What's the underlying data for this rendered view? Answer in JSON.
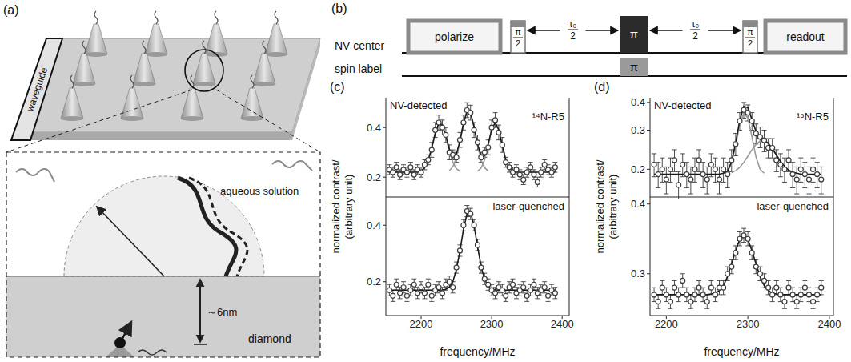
{
  "panels": {
    "a": {
      "letter": "(a)",
      "waveguide": "waveguide",
      "solution": "aqueous solution",
      "depth": "～6nm",
      "diamond": "diamond"
    },
    "b": {
      "letter": "(b)",
      "rows": [
        {
          "label": "NV center",
          "sequence": [
            {
              "kind": "box",
              "text": "polarize"
            },
            {
              "kind": "pulse",
              "num": "π",
              "den": "2"
            },
            {
              "kind": "delay",
              "num": "τ₀",
              "den": "2"
            },
            {
              "kind": "pi",
              "text": "π"
            },
            {
              "kind": "delay",
              "num": "τ₀",
              "den": "2"
            },
            {
              "kind": "pulse",
              "num": "π",
              "den": "2"
            },
            {
              "kind": "box",
              "text": "readout"
            }
          ]
        },
        {
          "label": "spin label",
          "sequence": [
            {
              "kind": "pi_gray",
              "text": "π"
            }
          ]
        }
      ]
    },
    "c": {
      "letter": "(c)",
      "y_label": [
        "normalized contrast/",
        "(arbitrary unit)"
      ]
    },
    "d": {
      "letter": "(d)",
      "y_label": [
        "normalized contrast/",
        "(arbitrary unit)"
      ]
    }
  },
  "chart_data": [
    {
      "type": "scatter",
      "title": "NV-detected",
      "annotation": "¹⁴N-R5",
      "tick_labels": "y",
      "xlim": [
        2150,
        2410
      ],
      "xticks": [
        2200,
        2300,
        2400
      ],
      "ylim": [
        0.12,
        0.52
      ],
      "yticks": [
        0.2,
        0.4
      ],
      "x": [
        2155,
        2160,
        2165,
        2170,
        2175,
        2180,
        2185,
        2190,
        2195,
        2200,
        2205,
        2210,
        2215,
        2220,
        2225,
        2230,
        2235,
        2240,
        2245,
        2250,
        2255,
        2260,
        2265,
        2270,
        2275,
        2280,
        2285,
        2290,
        2295,
        2300,
        2305,
        2310,
        2315,
        2320,
        2325,
        2330,
        2335,
        2340,
        2345,
        2350,
        2355,
        2360,
        2365,
        2370,
        2375,
        2380,
        2385,
        2390
      ],
      "series": [
        {
          "type": "line",
          "color": "#9a9a9a",
          "line_style": "solid",
          "x": [
            2200,
            2205,
            2210,
            2215,
            2220,
            2225,
            2230,
            2235,
            2240,
            2245,
            2250,
            2255
          ],
          "values": [
            0.225,
            0.238,
            0.267,
            0.317,
            0.377,
            0.416,
            0.411,
            0.365,
            0.306,
            0.26,
            0.234,
            0.224
          ]
        },
        {
          "type": "line",
          "color": "#9a9a9a",
          "line_style": "solid",
          "x": [
            2240,
            2245,
            2250,
            2255,
            2260,
            2265,
            2270,
            2275,
            2280,
            2285,
            2290,
            2295
          ],
          "values": [
            0.2265,
            0.242,
            0.279,
            0.342,
            0.416,
            0.465,
            0.459,
            0.402,
            0.328,
            0.27,
            0.238,
            0.225
          ]
        },
        {
          "type": "line",
          "color": "#9a9a9a",
          "line_style": "solid",
          "x": [
            2280,
            2285,
            2290,
            2295,
            2300,
            2305,
            2310,
            2315,
            2320,
            2325,
            2330
          ],
          "values": [
            0.224,
            0.237,
            0.27,
            0.328,
            0.391,
            0.42,
            0.391,
            0.328,
            0.27,
            0.237,
            0.224
          ]
        },
        {
          "type": "line",
          "color": "#1a1a1a",
          "line_style": "solid",
          "values": [
            0.22,
            0.22,
            0.22,
            0.22,
            0.22,
            0.22,
            0.22,
            0.22,
            0.221,
            0.225,
            0.238,
            0.267,
            0.317,
            0.377,
            0.416,
            0.411,
            0.367,
            0.313,
            0.282,
            0.293,
            0.346,
            0.417,
            0.465,
            0.459,
            0.403,
            0.332,
            0.287,
            0.288,
            0.333,
            0.392,
            0.42,
            0.391,
            0.328,
            0.27,
            0.237,
            0.224,
            0.221,
            0.22,
            0.22,
            0.22,
            0.22,
            0.22,
            0.22,
            0.22,
            0.22,
            0.22,
            0.22,
            0.22
          ]
        },
        {
          "type": "scatter",
          "color": "#3a3a3a",
          "marker": "circle",
          "values": [
            0.23,
            0.22,
            0.24,
            0.21,
            0.23,
            0.22,
            0.24,
            0.21,
            0.23,
            0.22,
            0.25,
            0.27,
            0.31,
            0.39,
            0.42,
            0.4,
            0.37,
            0.3,
            0.29,
            0.28,
            0.35,
            0.42,
            0.47,
            0.46,
            0.39,
            0.34,
            0.28,
            0.3,
            0.32,
            0.4,
            0.43,
            0.38,
            0.33,
            0.26,
            0.24,
            0.22,
            0.23,
            0.21,
            0.19,
            0.22,
            0.24,
            0.21,
            0.18,
            0.22,
            0.25,
            0.23,
            0.22,
            0.24
          ],
          "error": [
            0.02,
            0.02,
            0.02,
            0.02,
            0.02,
            0.02,
            0.02,
            0.02,
            0.02,
            0.02,
            0.02,
            0.02,
            0.03,
            0.03,
            0.03,
            0.03,
            0.03,
            0.03,
            0.02,
            0.02,
            0.03,
            0.03,
            0.03,
            0.03,
            0.03,
            0.03,
            0.02,
            0.02,
            0.03,
            0.03,
            0.03,
            0.03,
            0.03,
            0.02,
            0.02,
            0.02,
            0.02,
            0.02,
            0.02,
            0.02,
            0.02,
            0.02,
            0.02,
            0.02,
            0.02,
            0.02,
            0.02,
            0.02
          ]
        }
      ]
    },
    {
      "type": "scatter",
      "title": "laser-quenched",
      "x_label": "frequency/MHz",
      "xlim": [
        2150,
        2410
      ],
      "xticks": [
        2200,
        2300,
        2400
      ],
      "ylim": [
        0.08,
        0.5
      ],
      "yticks": [
        0.2,
        0.4
      ],
      "x": [
        2155,
        2160,
        2165,
        2170,
        2175,
        2180,
        2185,
        2190,
        2195,
        2200,
        2205,
        2210,
        2215,
        2220,
        2225,
        2230,
        2235,
        2240,
        2245,
        2250,
        2255,
        2260,
        2265,
        2270,
        2275,
        2280,
        2285,
        2290,
        2295,
        2300,
        2305,
        2310,
        2315,
        2320,
        2325,
        2330,
        2335,
        2340,
        2345,
        2350,
        2355,
        2360,
        2365,
        2370,
        2375,
        2380,
        2385,
        2390
      ],
      "series": [
        {
          "type": "line",
          "color": "#1a1a1a",
          "line_style": "solid",
          "values": [
            0.17,
            0.17,
            0.17,
            0.17,
            0.17,
            0.17,
            0.17,
            0.17,
            0.17,
            0.17,
            0.17,
            0.17,
            0.17,
            0.17,
            0.17,
            0.171,
            0.173,
            0.181,
            0.201,
            0.243,
            0.309,
            0.385,
            0.44,
            0.445,
            0.399,
            0.324,
            0.255,
            0.208,
            0.184,
            0.174,
            0.171,
            0.17,
            0.17,
            0.17,
            0.17,
            0.17,
            0.17,
            0.17,
            0.17,
            0.17,
            0.17,
            0.17,
            0.17,
            0.17,
            0.17,
            0.17,
            0.17,
            0.17
          ]
        },
        {
          "type": "scatter",
          "color": "#3a3a3a",
          "marker": "circle",
          "values": [
            0.17,
            0.15,
            0.19,
            0.16,
            0.18,
            0.15,
            0.17,
            0.19,
            0.16,
            0.18,
            0.16,
            0.19,
            0.15,
            0.17,
            0.18,
            0.16,
            0.19,
            0.2,
            0.18,
            0.25,
            0.31,
            0.4,
            0.45,
            0.44,
            0.4,
            0.33,
            0.25,
            0.21,
            0.19,
            0.17,
            0.16,
            0.18,
            0.17,
            0.15,
            0.18,
            0.19,
            0.16,
            0.17,
            0.18,
            0.15,
            0.17,
            0.19,
            0.16,
            0.17,
            0.18,
            0.15,
            0.17,
            0.16
          ],
          "error": [
            0.02,
            0.02,
            0.02,
            0.02,
            0.02,
            0.02,
            0.02,
            0.02,
            0.02,
            0.02,
            0.02,
            0.02,
            0.02,
            0.02,
            0.02,
            0.02,
            0.02,
            0.02,
            0.02,
            0.02,
            0.02,
            0.02,
            0.02,
            0.02,
            0.02,
            0.02,
            0.02,
            0.02,
            0.02,
            0.02,
            0.02,
            0.02,
            0.02,
            0.02,
            0.02,
            0.02,
            0.02,
            0.02,
            0.02,
            0.02,
            0.02,
            0.02,
            0.02,
            0.02,
            0.02,
            0.02,
            0.02,
            0.02
          ]
        }
      ]
    },
    {
      "type": "scatter",
      "title": "NV-detected",
      "annotation": "¹⁵N-R5",
      "tick_labels": "y",
      "log": "y",
      "xlim": [
        2180,
        2405
      ],
      "xticks": [
        2200,
        2300,
        2400
      ],
      "ylim": [
        0.15,
        0.42
      ],
      "yticks": [
        0.2,
        0.3,
        0.4
      ],
      "x": [
        2185,
        2190,
        2195,
        2200,
        2205,
        2210,
        2215,
        2220,
        2225,
        2230,
        2235,
        2240,
        2245,
        2250,
        2255,
        2260,
        2265,
        2270,
        2275,
        2280,
        2285,
        2290,
        2295,
        2300,
        2305,
        2310,
        2315,
        2320,
        2325,
        2330,
        2335,
        2340,
        2345,
        2350,
        2355,
        2360,
        2365,
        2370,
        2375,
        2380,
        2385,
        2390
      ],
      "series": [
        {
          "type": "line",
          "color": "#9a9a9a",
          "line_style": "solid",
          "x": [
            2275,
            2280,
            2285,
            2290,
            2295,
            2300,
            2305,
            2310,
            2315,
            2320
          ],
          "values": [
            0.195,
            0.213,
            0.256,
            0.318,
            0.359,
            0.34,
            0.28,
            0.227,
            0.2,
            0.192
          ]
        },
        {
          "type": "line",
          "color": "#9a9a9a",
          "line_style": "solid",
          "x": [
            2280,
            2285,
            2290,
            2295,
            2300,
            2305,
            2310,
            2315,
            2320,
            2325,
            2330,
            2335,
            2340,
            2345,
            2350,
            2355,
            2360
          ],
          "values": [
            0.193,
            0.197,
            0.204,
            0.215,
            0.229,
            0.245,
            0.259,
            0.268,
            0.269,
            0.262,
            0.248,
            0.232,
            0.217,
            0.206,
            0.198,
            0.194,
            0.192
          ]
        },
        {
          "type": "line",
          "color": "#1a1a1a",
          "line_style": "solid",
          "values": [
            0.19,
            0.19,
            0.19,
            0.19,
            0.19,
            0.19,
            0.19,
            0.19,
            0.19,
            0.19,
            0.19,
            0.19,
            0.19,
            0.19,
            0.19,
            0.19,
            0.19,
            0.192,
            0.196,
            0.216,
            0.263,
            0.332,
            0.384,
            0.379,
            0.335,
            0.296,
            0.278,
            0.271,
            0.262,
            0.248,
            0.232,
            0.217,
            0.206,
            0.198,
            0.194,
            0.192,
            0.19,
            0.19,
            0.19,
            0.19,
            0.19,
            0.19
          ]
        },
        {
          "type": "scatter",
          "color": "#3a3a3a",
          "marker": "circle",
          "values": [
            0.21,
            0.19,
            0.2,
            0.18,
            0.2,
            0.22,
            0.17,
            0.21,
            0.19,
            0.18,
            0.2,
            0.22,
            0.19,
            0.18,
            0.21,
            0.2,
            0.18,
            0.2,
            0.19,
            0.22,
            0.26,
            0.33,
            0.37,
            0.36,
            0.33,
            0.29,
            0.28,
            0.27,
            0.25,
            0.25,
            0.22,
            0.21,
            0.2,
            0.22,
            0.19,
            0.18,
            0.2,
            0.19,
            0.18,
            0.2,
            0.19,
            0.18
          ],
          "error": [
            0.025,
            0.025,
            0.025,
            0.025,
            0.025,
            0.025,
            0.025,
            0.025,
            0.025,
            0.025,
            0.025,
            0.025,
            0.025,
            0.025,
            0.025,
            0.025,
            0.025,
            0.025,
            0.025,
            0.025,
            0.03,
            0.03,
            0.03,
            0.03,
            0.03,
            0.03,
            0.03,
            0.03,
            0.025,
            0.025,
            0.025,
            0.025,
            0.025,
            0.025,
            0.025,
            0.025,
            0.025,
            0.025,
            0.025,
            0.025,
            0.025,
            0.025
          ]
        }
      ]
    },
    {
      "type": "scatter",
      "title": "laser-quenched",
      "x_label": "frequency/MHz",
      "xlim": [
        2180,
        2405
      ],
      "xticks": [
        2200,
        2300,
        2400
      ],
      "ylim": [
        0.24,
        0.41
      ],
      "yticks": [
        0.3,
        0.4
      ],
      "x": [
        2185,
        2190,
        2195,
        2200,
        2205,
        2210,
        2215,
        2220,
        2225,
        2230,
        2235,
        2240,
        2245,
        2250,
        2255,
        2260,
        2265,
        2270,
        2275,
        2280,
        2285,
        2290,
        2295,
        2300,
        2305,
        2310,
        2315,
        2320,
        2325,
        2330,
        2335,
        2340,
        2345,
        2350,
        2355,
        2360,
        2365,
        2370,
        2375,
        2380,
        2385,
        2390
      ],
      "series": [
        {
          "type": "line",
          "color": "#1a1a1a",
          "line_style": "solid",
          "values": [
            0.27,
            0.27,
            0.27,
            0.27,
            0.27,
            0.27,
            0.27,
            0.27,
            0.27,
            0.27,
            0.27,
            0.27,
            0.27,
            0.27,
            0.271,
            0.272,
            0.276,
            0.283,
            0.296,
            0.314,
            0.333,
            0.349,
            0.355,
            0.349,
            0.333,
            0.314,
            0.296,
            0.283,
            0.276,
            0.272,
            0.271,
            0.27,
            0.27,
            0.27,
            0.27,
            0.27,
            0.27,
            0.27,
            0.27,
            0.27,
            0.27,
            0.27
          ]
        },
        {
          "type": "scatter",
          "color": "#3a3a3a",
          "marker": "circle",
          "values": [
            0.27,
            0.26,
            0.28,
            0.27,
            0.26,
            0.28,
            0.27,
            0.29,
            0.27,
            0.26,
            0.27,
            0.28,
            0.27,
            0.26,
            0.28,
            0.27,
            0.28,
            0.28,
            0.3,
            0.31,
            0.33,
            0.35,
            0.355,
            0.35,
            0.33,
            0.31,
            0.3,
            0.29,
            0.28,
            0.27,
            0.28,
            0.27,
            0.26,
            0.28,
            0.27,
            0.26,
            0.27,
            0.28,
            0.27,
            0.26,
            0.27,
            0.28
          ],
          "error": [
            0.01,
            0.01,
            0.01,
            0.01,
            0.01,
            0.01,
            0.01,
            0.01,
            0.01,
            0.01,
            0.01,
            0.01,
            0.01,
            0.01,
            0.01,
            0.01,
            0.01,
            0.01,
            0.01,
            0.01,
            0.01,
            0.01,
            0.01,
            0.01,
            0.01,
            0.01,
            0.01,
            0.01,
            0.01,
            0.01,
            0.01,
            0.01,
            0.01,
            0.01,
            0.01,
            0.01,
            0.01,
            0.01,
            0.01,
            0.01,
            0.01,
            0.01
          ]
        }
      ]
    }
  ]
}
